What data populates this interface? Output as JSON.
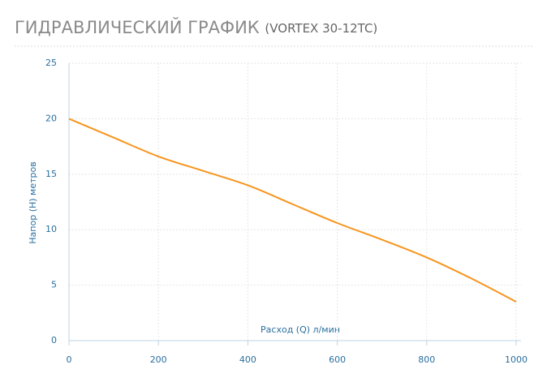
{
  "chart_data": {
    "type": "line",
    "title": "ГИДРАВЛИЧЕСКИЙ ГРАФИК",
    "subtitle": "(VORTEX 30-12TC)",
    "x_label": "Расход (Q) л/мин",
    "y_label": "Напор (H) метров",
    "x": [
      0,
      100,
      200,
      300,
      400,
      500,
      600,
      700,
      800,
      900,
      1000
    ],
    "series": [
      {
        "name": "VORTEX 30-12TC",
        "color": "#f7941d",
        "values": [
          20,
          18.3,
          16.6,
          15.3,
          14.0,
          12.3,
          10.6,
          9.1,
          7.5,
          5.6,
          3.5
        ]
      }
    ],
    "xlim": [
      0,
      1000
    ],
    "xticks": [
      0,
      200,
      400,
      600,
      800,
      1000
    ],
    "ylim": [
      0,
      25
    ],
    "yticks": [
      0,
      5,
      10,
      15,
      20,
      25
    ],
    "grid": true
  }
}
